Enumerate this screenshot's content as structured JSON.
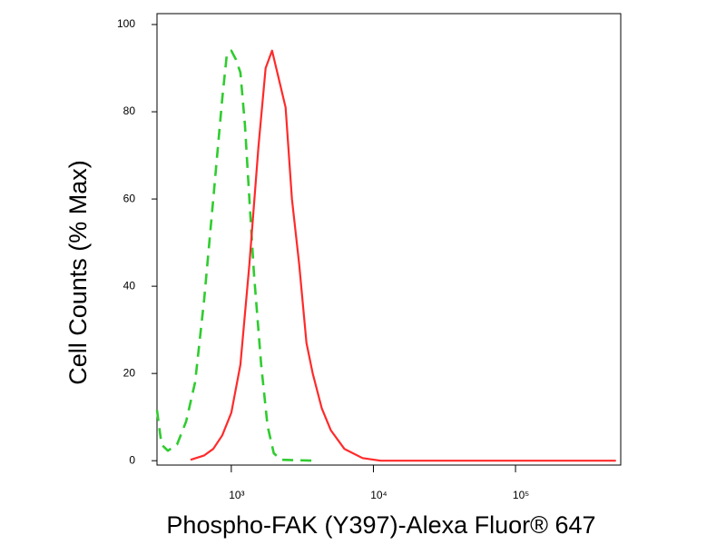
{
  "chart_data": {
    "type": "line",
    "xlabel": "Phospho-FAK (Y397)-Alexa Fluor® 647",
    "ylabel": "Cell Counts (% Max)",
    "xscale": "log",
    "xlim": [
      300,
      550000
    ],
    "ylim": [
      -1,
      102.5
    ],
    "xticks": [
      {
        "value": 1000,
        "label": "10³"
      },
      {
        "value": 10000,
        "label": "10⁴"
      },
      {
        "value": 100000,
        "label": "10⁵"
      }
    ],
    "yticks": [
      0,
      20,
      40,
      60,
      80,
      100
    ],
    "grid": false,
    "series": [
      {
        "color": "#2fcc2f",
        "dash": true,
        "x": [
          300,
          323,
          358,
          415,
          481,
          556,
          644,
          747,
          864,
          929,
          1000,
          1076,
          1158,
          1247,
          1341,
          1443,
          1623,
          1798,
          1992,
          2240,
          4000
        ],
        "values": [
          11.6,
          3.7,
          2.3,
          3.7,
          9,
          18,
          37,
          60,
          83,
          93,
          94,
          92,
          89,
          77,
          60,
          43,
          22,
          8,
          1.7,
          0.2,
          0
        ]
      },
      {
        "color": "#ff2a2a",
        "dash": false,
        "x": [
          517,
          644,
          747,
          864,
          1000,
          1158,
          1341,
          1553,
          1745,
          1935,
          2143,
          2410,
          2673,
          3004,
          3381,
          3743,
          4333,
          5016,
          6247,
          8391,
          11250,
          509000
        ],
        "values": [
          0.2,
          1.2,
          2.7,
          5.8,
          11,
          22,
          45,
          72,
          90,
          94,
          88,
          81,
          60,
          45,
          27,
          20,
          12,
          7,
          2.7,
          0.6,
          0,
          0
        ]
      }
    ]
  }
}
